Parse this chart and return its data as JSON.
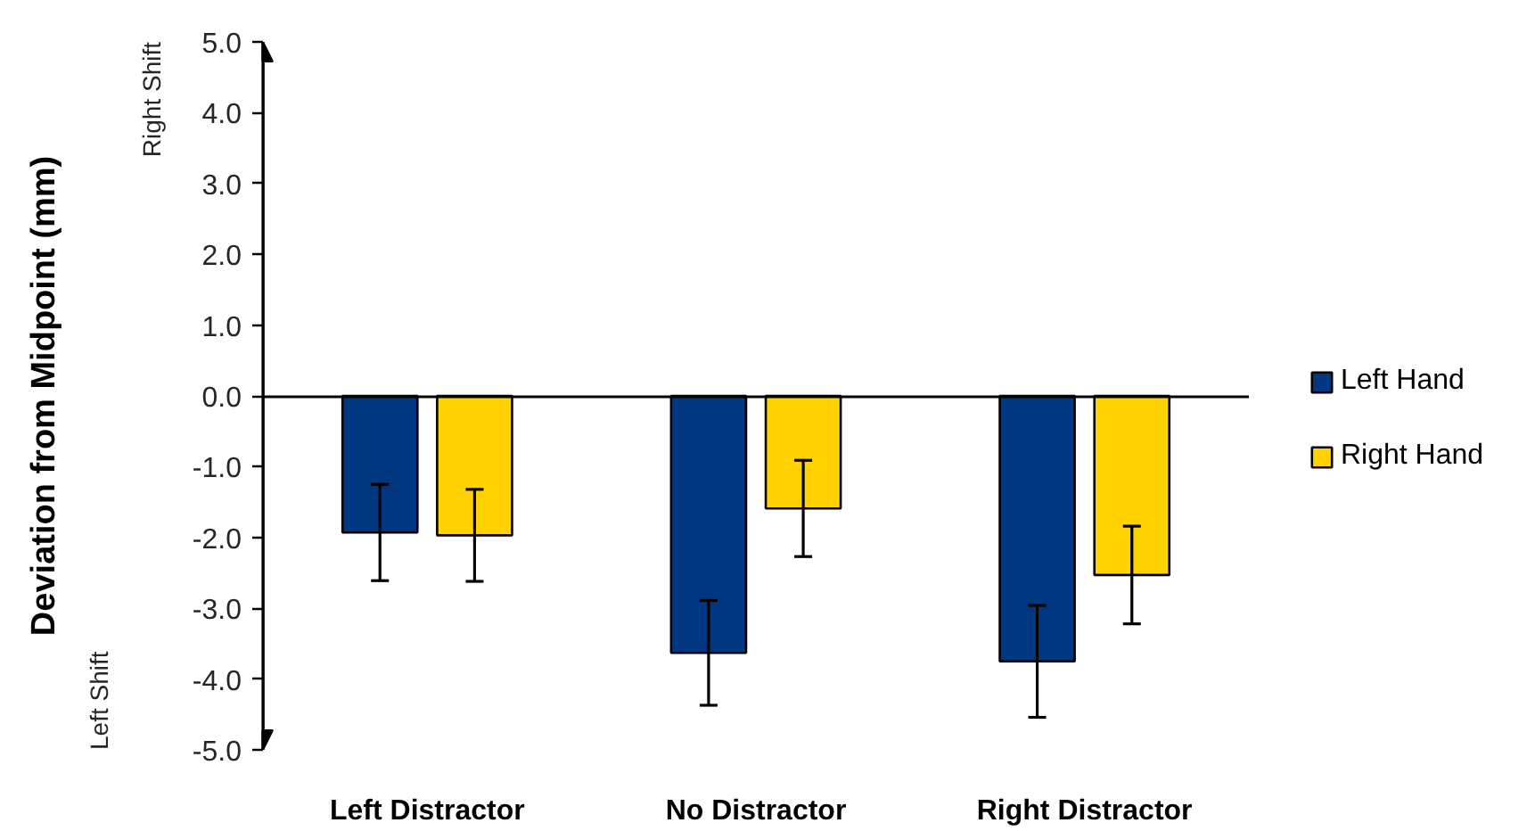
{
  "chart_data": {
    "type": "bar",
    "categories": [
      "Left Distractor",
      "No Distractor",
      "Right Distractor"
    ],
    "series": [
      {
        "name": "Left Hand",
        "color": "#003781",
        "values": [
          -1.93,
          -3.63,
          -3.75
        ],
        "errors": [
          0.68,
          0.74,
          0.79
        ]
      },
      {
        "name": "Right Hand",
        "color": "#ffd200",
        "values": [
          -1.97,
          -1.59,
          -2.53
        ],
        "errors": [
          0.65,
          0.68,
          0.69
        ]
      }
    ],
    "ylabel": "Deviation from Midpoint (mm)",
    "ylim": [
      -5,
      5
    ],
    "yticks": [
      {
        "value": 5,
        "label": "5.0"
      },
      {
        "value": 4,
        "label": "4.0"
      },
      {
        "value": 3,
        "label": "3.0"
      },
      {
        "value": 2,
        "label": "2.0"
      },
      {
        "value": 1,
        "label": "1.0"
      },
      {
        "value": 0,
        "label": "0.0"
      },
      {
        "value": -1,
        "label": "-1.0"
      },
      {
        "value": -2,
        "label": "-2.0"
      },
      {
        "value": -3,
        "label": "-3.0"
      },
      {
        "value": -4,
        "label": "-4.0"
      },
      {
        "value": -5,
        "label": "-5.0"
      }
    ],
    "ref_lines": [
      {
        "axis": "y",
        "value": 0,
        "color": "#000000"
      }
    ],
    "annotations": [
      "Right Shift",
      "Left Shift"
    ],
    "legend": "right",
    "grid": false
  }
}
